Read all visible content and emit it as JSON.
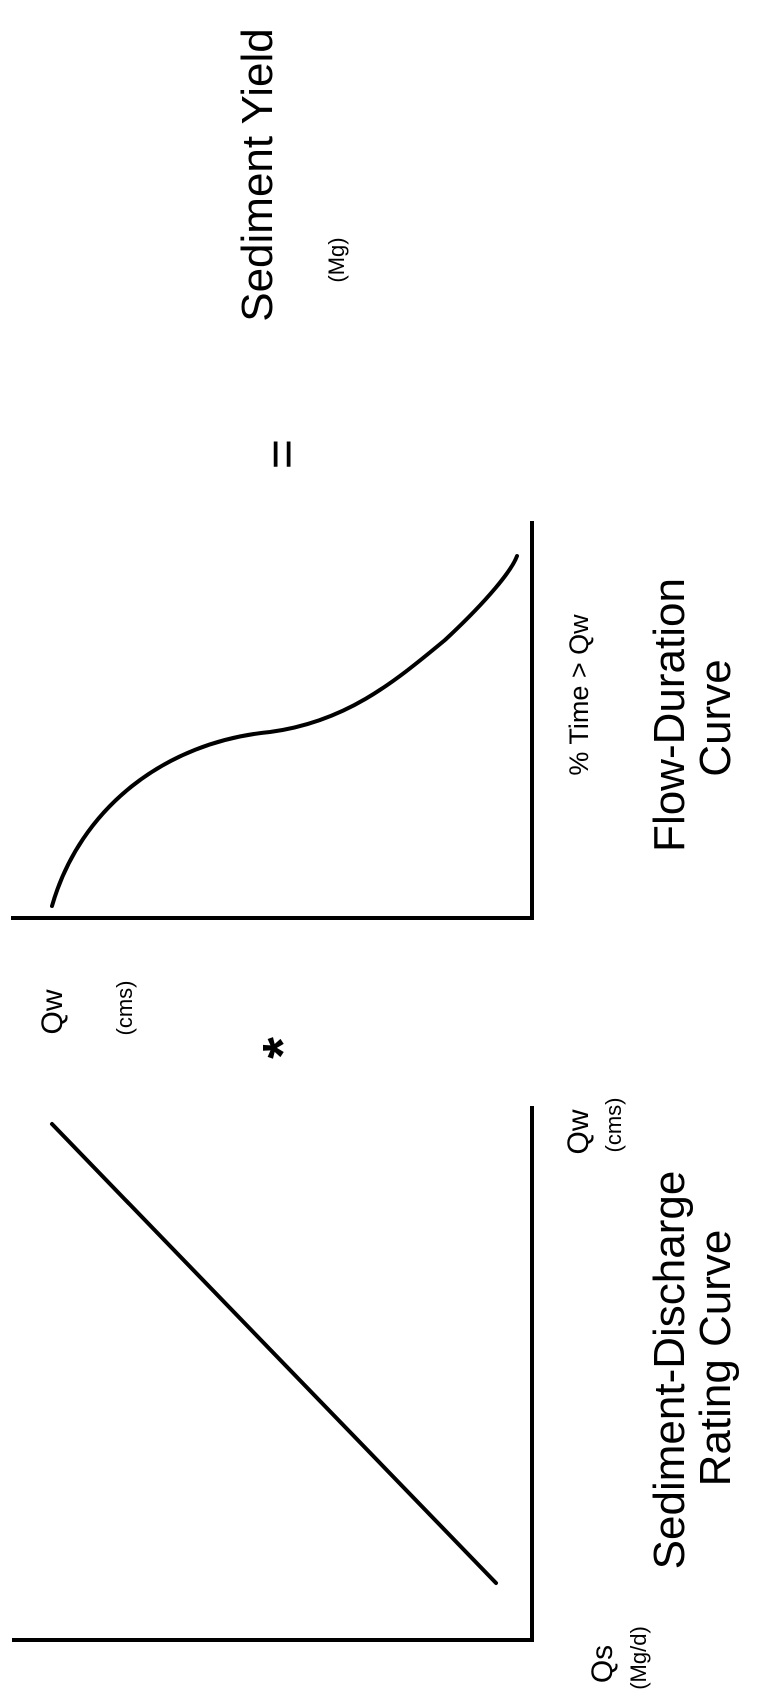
{
  "rating_curve": {
    "y_label": "Qs",
    "y_unit": "(Mg/d)",
    "x_label": "Qw",
    "x_unit": "(cms)",
    "title_line1": "Sediment-Discharge",
    "title_line2": "Rating Curve"
  },
  "operator_multiply": "*",
  "flow_duration": {
    "y_label": "Qw",
    "y_unit": "(cms)",
    "x_label": "% Time > Qw",
    "title_line1": "Flow-Duration",
    "title_line2": "Curve"
  },
  "operator_equals": "=",
  "result": {
    "label": "Sediment Yield",
    "unit": "(Mg)"
  }
}
